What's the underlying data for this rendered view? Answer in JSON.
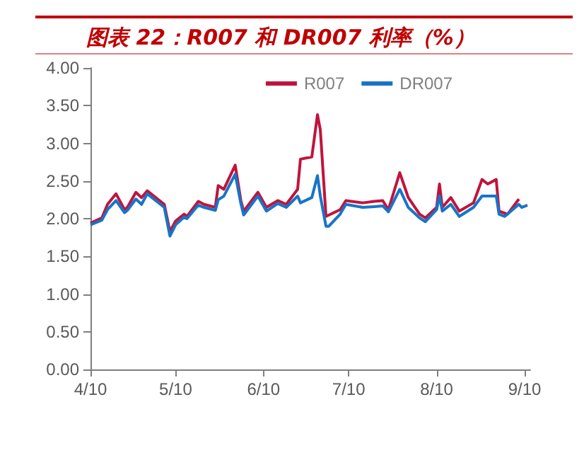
{
  "chart_data": {
    "type": "line",
    "title": "图表 22：R007 和 DR007 利率（%）",
    "xlim": [
      "--04-10",
      "--09-12"
    ],
    "xticks": [
      {
        "value": "--04-10",
        "label": "4/10"
      },
      {
        "value": "--05-10",
        "label": "5/10"
      },
      {
        "value": "--06-10",
        "label": "6/10"
      },
      {
        "value": "--07-10",
        "label": "7/10"
      },
      {
        "value": "--08-10",
        "label": "8/10"
      },
      {
        "value": "--09-10",
        "label": "9/10"
      }
    ],
    "ylim": [
      0,
      4
    ],
    "yticks": [
      {
        "value": 0,
        "label": "0.00"
      },
      {
        "value": 0.5,
        "label": "0.50"
      },
      {
        "value": 1,
        "label": "1.00"
      },
      {
        "value": 1.5,
        "label": "1.50"
      },
      {
        "value": 2,
        "label": "2.00"
      },
      {
        "value": 2.5,
        "label": "2.50"
      },
      {
        "value": 3,
        "label": "3.00"
      },
      {
        "value": 3.5,
        "label": "3.50"
      },
      {
        "value": 4,
        "label": "4.00"
      }
    ],
    "grid": false,
    "legend": "top right",
    "marker": "none",
    "line_style": "solid",
    "series": [
      {
        "name": "R007",
        "color": "#c0143c",
        "x": [
          "--04-10",
          "--04-14",
          "--04-16",
          "--04-19",
          "--04-22",
          "--04-23",
          "--04-26",
          "--04-28",
          "--04-30",
          "--05-06",
          "--05-08",
          "--05-10",
          "--05-13",
          "--05-14",
          "--05-18",
          "--05-20",
          "--05-24",
          "--05-25",
          "--05-27",
          "--05-31",
          "--06-02",
          "--06-03",
          "--06-08",
          "--06-11",
          "--06-15",
          "--06-18",
          "--06-22",
          "--06-23",
          "--06-27",
          "--06-29",
          "--06-30",
          "--07-02",
          "--07-07",
          "--07-09",
          "--07-15",
          "--07-19",
          "--07-22",
          "--07-24",
          "--07-28",
          "--07-31",
          "--08-04",
          "--08-06",
          "--08-10",
          "--08-11",
          "--08-12",
          "--08-15",
          "--08-18",
          "--08-23",
          "--08-26",
          "--08-28",
          "--08-31",
          "--09-01",
          "--09-04",
          "--09-08"
        ],
        "values": [
          1.94,
          2.01,
          2.19,
          2.33,
          2.12,
          2.15,
          2.35,
          2.28,
          2.37,
          2.19,
          1.83,
          1.97,
          2.06,
          2.03,
          2.23,
          2.19,
          2.15,
          2.44,
          2.39,
          2.71,
          2.24,
          2.1,
          2.35,
          2.15,
          2.24,
          2.19,
          2.39,
          2.79,
          2.82,
          3.38,
          3.18,
          2.03,
          2.12,
          2.24,
          2.21,
          2.23,
          2.24,
          2.12,
          2.61,
          2.28,
          2.06,
          2.01,
          2.15,
          2.46,
          2.15,
          2.28,
          2.1,
          2.21,
          2.52,
          2.46,
          2.52,
          2.1,
          2.06,
          2.26
        ]
      },
      {
        "name": "DR007",
        "color": "#1874c8",
        "x": [
          "--04-10",
          "--04-14",
          "--04-16",
          "--04-19",
          "--04-22",
          "--04-23",
          "--04-26",
          "--04-28",
          "--04-30",
          "--05-06",
          "--05-08",
          "--05-10",
          "--05-13",
          "--05-14",
          "--05-18",
          "--05-20",
          "--05-24",
          "--05-25",
          "--05-27",
          "--05-31",
          "--06-02",
          "--06-03",
          "--06-08",
          "--06-11",
          "--06-15",
          "--06-18",
          "--06-22",
          "--06-23",
          "--06-27",
          "--06-29",
          "--06-30",
          "--07-02",
          "--07-03",
          "--07-07",
          "--07-09",
          "--07-15",
          "--07-19",
          "--07-22",
          "--07-24",
          "--07-28",
          "--07-31",
          "--08-04",
          "--08-06",
          "--08-10",
          "--08-11",
          "--08-12",
          "--08-15",
          "--08-18",
          "--08-23",
          "--08-26",
          "--08-31",
          "--09-01",
          "--09-03",
          "--09-08",
          "--09-09",
          "--09-11"
        ],
        "values": [
          1.92,
          1.98,
          2.12,
          2.24,
          2.08,
          2.11,
          2.26,
          2.19,
          2.33,
          2.15,
          1.77,
          1.92,
          2.02,
          2.0,
          2.18,
          2.15,
          2.11,
          2.25,
          2.3,
          2.59,
          2.2,
          2.05,
          2.3,
          2.1,
          2.2,
          2.15,
          2.3,
          2.21,
          2.28,
          2.57,
          2.3,
          1.9,
          1.9,
          2.06,
          2.19,
          2.15,
          2.16,
          2.17,
          2.09,
          2.39,
          2.15,
          2.01,
          1.96,
          2.12,
          2.3,
          2.1,
          2.19,
          2.03,
          2.15,
          2.3,
          2.3,
          2.06,
          2.03,
          2.19,
          2.15,
          2.18
        ]
      }
    ]
  }
}
